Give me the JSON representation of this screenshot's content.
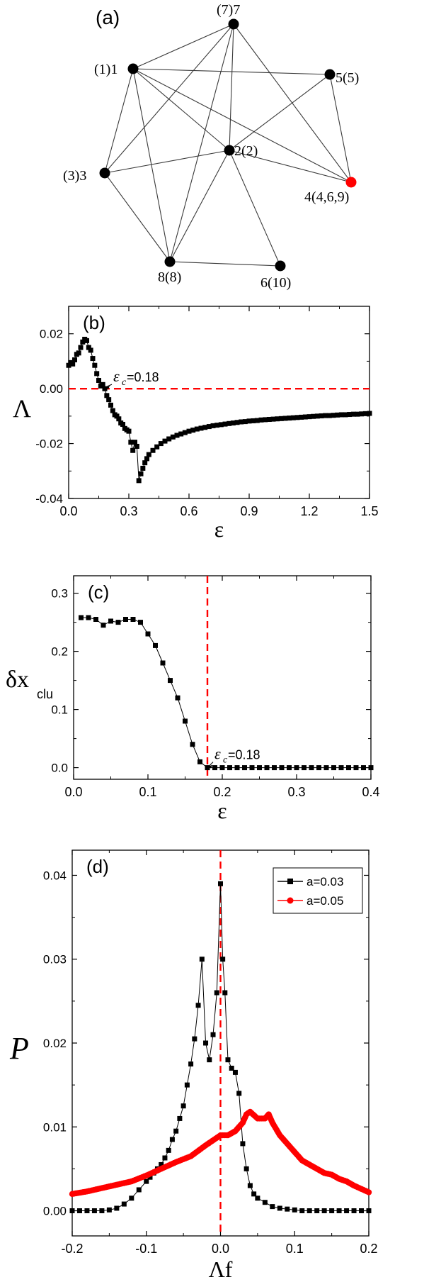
{
  "panel_a": {
    "label": "(a)",
    "nodes": [
      {
        "label": "(1)1",
        "color": "#000000"
      },
      {
        "label": "(7)7",
        "color": "#000000"
      },
      {
        "label": "5(5)",
        "color": "#000000"
      },
      {
        "label": "2(2)",
        "color": "#000000"
      },
      {
        "label": "(3)3",
        "color": "#000000"
      },
      {
        "label": "4(4,6,9)",
        "color": "#ff0000"
      },
      {
        "label": "8(8)",
        "color": "#000000"
      },
      {
        "label": "6(10)",
        "color": "#000000"
      }
    ],
    "edges": [
      [
        0,
        1
      ],
      [
        0,
        2
      ],
      [
        0,
        3
      ],
      [
        0,
        4
      ],
      [
        0,
        5
      ],
      [
        0,
        6
      ],
      [
        1,
        3
      ],
      [
        1,
        4
      ],
      [
        1,
        5
      ],
      [
        1,
        6
      ],
      [
        2,
        3
      ],
      [
        2,
        5
      ],
      [
        3,
        4
      ],
      [
        3,
        5
      ],
      [
        3,
        6
      ],
      [
        3,
        7
      ],
      [
        4,
        6
      ],
      [
        6,
        7
      ]
    ]
  },
  "chart_data": [
    {
      "panel": "(b)",
      "type": "scatter",
      "xlabel": "ε",
      "ylabel": "Λ",
      "xlim": [
        0,
        1.5
      ],
      "ylim": [
        -0.04,
        0.03
      ],
      "xticks": [
        "0.0",
        "0.3",
        "0.6",
        "0.9",
        "1.2",
        "1.5"
      ],
      "yticks": [
        "-0.04",
        "-0.02",
        "0.00",
        "0.02"
      ],
      "annotation": {
        "symbol": "ε",
        "sub": "c",
        "text": "=0.18",
        "x": 0.18,
        "y": 0.0
      },
      "reference_line": {
        "axis": "y",
        "value": 0.0,
        "color": "#ff0000",
        "style": "dashed"
      },
      "series": [
        {
          "color": "#000000",
          "x": [
            0.0,
            0.01,
            0.02,
            0.03,
            0.04,
            0.05,
            0.06,
            0.07,
            0.08,
            0.09,
            0.1,
            0.11,
            0.12,
            0.13,
            0.14,
            0.15,
            0.16,
            0.17,
            0.18,
            0.19,
            0.2,
            0.21,
            0.22,
            0.23,
            0.24,
            0.25,
            0.26,
            0.27,
            0.28,
            0.29,
            0.3,
            0.31,
            0.32,
            0.33,
            0.34,
            0.35,
            0.36,
            0.37,
            0.38,
            0.39,
            0.4,
            0.42,
            0.44,
            0.46,
            0.48,
            0.5,
            0.52,
            0.54,
            0.56,
            0.58,
            0.6,
            0.62,
            0.64,
            0.66,
            0.68,
            0.7,
            0.72,
            0.74,
            0.76,
            0.78,
            0.8,
            0.82,
            0.84,
            0.86,
            0.88,
            0.9,
            0.92,
            0.94,
            0.96,
            0.98,
            1.0,
            1.02,
            1.04,
            1.06,
            1.08,
            1.1,
            1.12,
            1.14,
            1.16,
            1.18,
            1.2,
            1.22,
            1.24,
            1.26,
            1.28,
            1.3,
            1.32,
            1.34,
            1.36,
            1.38,
            1.4,
            1.42,
            1.44,
            1.46,
            1.48,
            1.5
          ],
          "y": [
            0.0085,
            0.0095,
            0.009,
            0.0105,
            0.0125,
            0.013,
            0.015,
            0.017,
            0.018,
            0.0175,
            0.015,
            0.014,
            0.011,
            0.0085,
            0.0055,
            0.003,
            0.001,
            0.0015,
            0.0,
            -0.0025,
            -0.004,
            -0.006,
            -0.008,
            -0.0095,
            -0.01,
            -0.011,
            -0.0125,
            -0.013,
            -0.0145,
            -0.015,
            -0.0155,
            -0.0195,
            -0.0225,
            -0.0195,
            -0.021,
            -0.0335,
            -0.031,
            -0.029,
            -0.027,
            -0.0255,
            -0.024,
            -0.0225,
            -0.0212,
            -0.02,
            -0.0191,
            -0.0183,
            -0.0176,
            -0.017,
            -0.0165,
            -0.016,
            -0.0155,
            -0.0151,
            -0.0147,
            -0.0144,
            -0.0141,
            -0.0138,
            -0.0135,
            -0.0133,
            -0.0131,
            -0.0129,
            -0.0127,
            -0.0125,
            -0.0123,
            -0.0121,
            -0.012,
            -0.0118,
            -0.0117,
            -0.0116,
            -0.0114,
            -0.0113,
            -0.0112,
            -0.0111,
            -0.011,
            -0.0109,
            -0.0108,
            -0.0107,
            -0.0106,
            -0.0105,
            -0.0104,
            -0.0103,
            -0.0102,
            -0.0101,
            -0.01,
            -0.0099,
            -0.0098,
            -0.0098,
            -0.0097,
            -0.0096,
            -0.0095,
            -0.0095,
            -0.0094,
            -0.0093,
            -0.0093,
            -0.0092,
            -0.0091,
            -0.009
          ]
        }
      ]
    },
    {
      "panel": "(c)",
      "type": "line",
      "xlabel": "ε",
      "ylabel": "δx",
      "ylabel_sub": "clu",
      "xlim": [
        0,
        0.4
      ],
      "ylim": [
        -0.02,
        0.33
      ],
      "xticks": [
        "0.0",
        "0.1",
        "0.2",
        "0.3",
        "0.4"
      ],
      "yticks": [
        "0.0",
        "0.1",
        "0.2",
        "0.3"
      ],
      "annotation": {
        "symbol": "ε",
        "sub": "c",
        "text": "=0.18",
        "x": 0.18,
        "y": 0.0
      },
      "reference_line": {
        "axis": "x",
        "value": 0.18,
        "color": "#ff0000",
        "style": "dashed"
      },
      "series": [
        {
          "color": "#000000",
          "x": [
            0.01,
            0.02,
            0.03,
            0.04,
            0.05,
            0.06,
            0.07,
            0.08,
            0.09,
            0.1,
            0.11,
            0.12,
            0.13,
            0.14,
            0.15,
            0.16,
            0.17,
            0.18,
            0.19,
            0.2,
            0.21,
            0.22,
            0.23,
            0.24,
            0.25,
            0.26,
            0.27,
            0.28,
            0.29,
            0.3,
            0.31,
            0.32,
            0.33,
            0.34,
            0.35,
            0.36,
            0.37,
            0.38,
            0.39,
            0.4
          ],
          "y": [
            0.258,
            0.258,
            0.255,
            0.245,
            0.252,
            0.25,
            0.255,
            0.255,
            0.25,
            0.23,
            0.21,
            0.18,
            0.15,
            0.12,
            0.08,
            0.04,
            0.01,
            0.0,
            0.0,
            0.0,
            0.0,
            0.0,
            0.0,
            0.0,
            0.0,
            0.0,
            0.0,
            0.0,
            0.0,
            0.0,
            0.0,
            0.0,
            0.0,
            0.0,
            0.0,
            0.0,
            0.0,
            0.0,
            0.0,
            0.0
          ]
        }
      ]
    },
    {
      "panel": "(d)",
      "type": "line",
      "xlabel": "Λf",
      "ylabel": "P",
      "xlim": [
        -0.2,
        0.2
      ],
      "ylim": [
        -0.003,
        0.043
      ],
      "xticks": [
        "-0.2",
        "-0.1",
        "0.0",
        "0.1",
        "0.2"
      ],
      "yticks": [
        "0.00",
        "0.01",
        "0.02",
        "0.03",
        "0.04"
      ],
      "legend_position": "top-right",
      "reference_line": {
        "axis": "x",
        "value": 0.0,
        "color": "#ff0000",
        "style": "dashed"
      },
      "series": [
        {
          "name": "a=0.03",
          "color": "#000000",
          "x": [
            -0.2,
            -0.19,
            -0.18,
            -0.17,
            -0.16,
            -0.15,
            -0.14,
            -0.13,
            -0.12,
            -0.11,
            -0.1,
            -0.095,
            -0.09,
            -0.085,
            -0.08,
            -0.075,
            -0.07,
            -0.065,
            -0.06,
            -0.055,
            -0.05,
            -0.045,
            -0.04,
            -0.035,
            -0.03,
            -0.025,
            -0.02,
            -0.015,
            -0.01,
            -0.005,
            0.0,
            0.003,
            0.006,
            0.01,
            0.015,
            0.02,
            0.025,
            0.03,
            0.035,
            0.04,
            0.045,
            0.05,
            0.06,
            0.07,
            0.08,
            0.09,
            0.1,
            0.11,
            0.12,
            0.13,
            0.14,
            0.15,
            0.16,
            0.17,
            0.18,
            0.19,
            0.2
          ],
          "y": [
            0.0,
            0.0,
            0.0,
            0.0,
            0.0,
            0.0001,
            0.0003,
            0.0008,
            0.0015,
            0.0025,
            0.0035,
            0.004,
            0.0045,
            0.005,
            0.0055,
            0.0063,
            0.0072,
            0.0085,
            0.0095,
            0.011,
            0.0125,
            0.015,
            0.0175,
            0.0205,
            0.0245,
            0.03,
            0.02,
            0.018,
            0.021,
            0.026,
            0.039,
            0.03,
            0.026,
            0.018,
            0.017,
            0.0165,
            0.014,
            0.008,
            0.005,
            0.003,
            0.002,
            0.0015,
            0.001,
            0.0005,
            0.0003,
            0.0002,
            0.0001,
            0.0,
            0.0,
            0.0,
            0.0,
            0.0,
            0.0,
            0.0,
            0.0,
            0.0,
            0.0
          ]
        },
        {
          "name": "a=0.05",
          "color": "#ff0000",
          "x": [
            -0.2,
            -0.18,
            -0.16,
            -0.14,
            -0.12,
            -0.1,
            -0.08,
            -0.06,
            -0.04,
            -0.02,
            0.0,
            0.01,
            0.02,
            0.03,
            0.035,
            0.04,
            0.05,
            0.06,
            0.065,
            0.07,
            0.08,
            0.09,
            0.1,
            0.11,
            0.12,
            0.13,
            0.14,
            0.15,
            0.16,
            0.17,
            0.18,
            0.19,
            0.2
          ],
          "y": [
            0.002,
            0.0023,
            0.0027,
            0.0031,
            0.0035,
            0.0042,
            0.005,
            0.0058,
            0.0065,
            0.0078,
            0.009,
            0.009,
            0.0095,
            0.0105,
            0.0115,
            0.0118,
            0.011,
            0.011,
            0.0115,
            0.0105,
            0.009,
            0.008,
            0.007,
            0.006,
            0.0055,
            0.005,
            0.0045,
            0.0043,
            0.0038,
            0.0035,
            0.003,
            0.0026,
            0.0022
          ]
        }
      ]
    }
  ]
}
